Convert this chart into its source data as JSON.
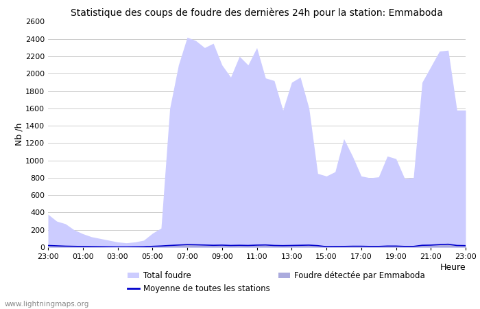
{
  "title": "Statistique des coups de foudre des dernières 24h pour la station: Emmaboda",
  "xlabel": "Heure",
  "ylabel": "Nb /h",
  "ylim": [
    0,
    2600
  ],
  "yticks": [
    0,
    200,
    400,
    600,
    800,
    1000,
    1200,
    1400,
    1600,
    1800,
    2000,
    2200,
    2400,
    2600
  ],
  "xtick_labels": [
    "23:00",
    "01:00",
    "03:00",
    "05:00",
    "07:00",
    "09:00",
    "11:00",
    "13:00",
    "15:00",
    "17:00",
    "19:00",
    "21:00",
    "23:00"
  ],
  "watermark": "www.lightningmaps.org",
  "color_total": "#ccccff",
  "color_station": "#aaaadd",
  "color_mean": "#0000cc",
  "legend_total": "Total foudre",
  "legend_mean": "Moyenne de toutes les stations",
  "legend_station": "Foudre détectée par Emmaboda",
  "x_points": [
    0,
    1,
    2,
    3,
    4,
    5,
    6,
    7,
    8,
    9,
    10,
    11,
    12,
    13,
    14,
    15,
    16,
    17,
    18,
    19,
    20,
    21,
    22,
    23,
    24,
    25,
    26,
    27,
    28,
    29,
    30,
    31,
    32,
    33,
    34,
    35,
    36,
    37,
    38,
    39,
    40,
    41,
    42,
    43,
    44,
    45,
    46,
    47,
    48
  ],
  "total_foudre": [
    380,
    300,
    270,
    200,
    155,
    120,
    100,
    80,
    60,
    50,
    60,
    80,
    160,
    220,
    1600,
    2100,
    2420,
    2380,
    2300,
    2350,
    2100,
    1960,
    2200,
    2100,
    2300,
    1950,
    1920,
    1580,
    1900,
    1960,
    1600,
    850,
    820,
    870,
    1250,
    1050,
    820,
    800,
    810,
    1050,
    1020,
    790,
    800,
    1900,
    2080,
    2260,
    2270,
    1580,
    1580
  ],
  "station_foudre": [
    18,
    14,
    10,
    8,
    6,
    5,
    4,
    3,
    2,
    2,
    3,
    4,
    8,
    12,
    18,
    22,
    28,
    25,
    22,
    20,
    22,
    18,
    20,
    18,
    22,
    24,
    18,
    16,
    18,
    20,
    22,
    16,
    5,
    6,
    8,
    10,
    10,
    8,
    8,
    12,
    12,
    8,
    8,
    20,
    22,
    28,
    32,
    18,
    16
  ],
  "mean_line": [
    20,
    16,
    12,
    10,
    8,
    6,
    5,
    4,
    3,
    3,
    4,
    5,
    10,
    14,
    20,
    25,
    30,
    28,
    25,
    22,
    24,
    20,
    22,
    20,
    24,
    26,
    20,
    18,
    20,
    22,
    24,
    18,
    6,
    7,
    9,
    11,
    11,
    9,
    9,
    13,
    13,
    9,
    9,
    22,
    24,
    30,
    34,
    20,
    18
  ]
}
